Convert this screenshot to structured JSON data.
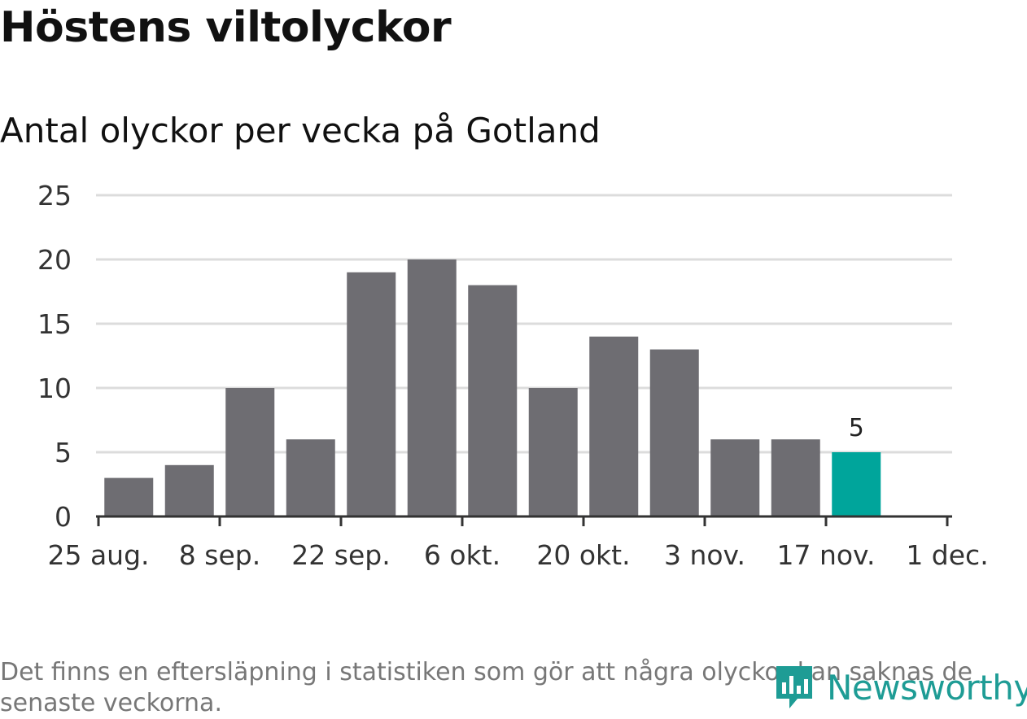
{
  "header": {
    "title": "Höstens viltolyckor",
    "subtitle": "Antal olyckor per vecka på Gotland"
  },
  "footnote": "Det finns en eftersläpning i statistiken som gör att några olyckor kan saknas de senaste veckorna.",
  "brand": {
    "name": "Newsworthy",
    "color": "#1e9c95"
  },
  "chart_data": {
    "type": "bar",
    "title": "Antal olyckor per vecka på Gotland",
    "xlabel": "",
    "ylabel": "",
    "ylim": [
      0,
      25
    ],
    "yticks": [
      0,
      5,
      10,
      15,
      20,
      25
    ],
    "grid": true,
    "xtick_labels": [
      "25 aug.",
      "8 sep.",
      "22 sep.",
      "6 okt.",
      "20 okt.",
      "3 nov.",
      "17 nov.",
      "1 dec."
    ],
    "weeks": [
      "1 sep.",
      "8 sep.",
      "15 sep.",
      "22 sep.",
      "29 sep.",
      "6 okt.",
      "13 okt.",
      "20 okt.",
      "27 okt.",
      "3 nov.",
      "10 nov.",
      "17 nov.",
      "24 nov."
    ],
    "values": [
      3,
      4,
      10,
      6,
      19,
      20,
      18,
      10,
      14,
      13,
      6,
      6,
      5
    ],
    "bar_color": "#6e6d72",
    "highlight_color": "#00a59b",
    "highlight_index": 12,
    "highlight_label": "5"
  }
}
